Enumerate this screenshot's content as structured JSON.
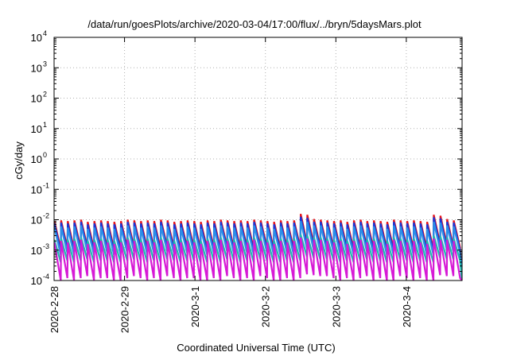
{
  "chart_data": {
    "type": "line",
    "title": "/data/run/goesPlots/archive/2020-03-04/17:00/flux/../bryn/5daysMars.plot",
    "xlabel": "Coordinated Universal Time (UTC)",
    "ylabel": "cGy/day",
    "yscale": "log",
    "ylim": [
      0.0001,
      10000
    ],
    "xlim": [
      "2020-02-28T00:00",
      "2020-03-04T19:00"
    ],
    "grid": true,
    "x_ticks": [
      {
        "label": "2020-2-28",
        "x": "2020-02-28T00:00"
      },
      {
        "label": "2020-2-29",
        "x": "2020-02-29T00:00"
      },
      {
        "label": "2020-3-1",
        "x": "2020-03-01T00:00"
      },
      {
        "label": "2020-3-2",
        "x": "2020-03-02T00:00"
      },
      {
        "label": "2020-3-3",
        "x": "2020-03-03T00:00"
      },
      {
        "label": "2020-3-4",
        "x": "2020-03-04T00:00"
      }
    ],
    "y_ticks": [
      {
        "base": "10",
        "exp": "-4",
        "value": 0.0001
      },
      {
        "base": "10",
        "exp": "-3",
        "value": 0.001
      },
      {
        "base": "10",
        "exp": "-2",
        "value": 0.01
      },
      {
        "base": "10",
        "exp": "-1",
        "value": 0.1
      },
      {
        "base": "10",
        "exp": "0",
        "value": 1
      },
      {
        "base": "10",
        "exp": "1",
        "value": 10
      },
      {
        "base": "10",
        "exp": "2",
        "value": 100
      },
      {
        "base": "10",
        "exp": "3",
        "value": 1000
      },
      {
        "base": "10",
        "exp": "4",
        "value": 10000
      }
    ],
    "series": [
      {
        "color": "#e4141c",
        "peaks": [
          0.009,
          0.0095,
          0.009,
          0.0095,
          0.01,
          0.0085,
          0.009,
          0.0095,
          0.009,
          0.0085,
          0.009,
          0.01,
          0.0095,
          0.009,
          0.0095,
          0.009,
          0.01,
          0.0095,
          0.0085,
          0.009,
          0.0095,
          0.009,
          0.0085,
          0.0095,
          0.009,
          0.01,
          0.0095,
          0.009,
          0.0095,
          0.009,
          0.01,
          0.0095,
          0.009,
          0.0085,
          0.0095,
          0.009,
          0.0095,
          0.0155,
          0.0145,
          0.0105,
          0.01,
          0.0095,
          0.009,
          0.0095,
          0.0085,
          0.0095,
          0.01,
          0.009,
          0.0095,
          0.009,
          0.0085,
          0.01,
          0.0095,
          0.009,
          0.0095,
          0.009,
          0.0085,
          0.0145,
          0.0135,
          0.0105,
          0.0095
        ],
        "troughs": [
          0.0011,
          0.0012,
          0.0011,
          0.0012,
          0.0013,
          0.0011,
          0.0012,
          0.0012,
          0.0011,
          0.0011,
          0.0012,
          0.0013,
          0.0012,
          0.0011,
          0.0012,
          0.0011,
          0.0013,
          0.0012,
          0.0011,
          0.0012,
          0.0012,
          0.0011,
          0.0011,
          0.0012,
          0.0011,
          0.0013,
          0.0012,
          0.0011,
          0.0012,
          0.0011,
          0.0013,
          0.0012,
          0.0011,
          0.0011,
          0.0012,
          0.0011,
          0.0012,
          0.0017,
          0.0016,
          0.0013,
          0.0013,
          0.0012,
          0.0011,
          0.0012,
          0.0011,
          0.0012,
          0.0013,
          0.0011,
          0.0012,
          0.0011,
          0.0011,
          0.0013,
          0.0012,
          0.0011,
          0.0012,
          0.0011,
          0.0011,
          0.0016,
          0.0015,
          0.0013,
          0.0012
        ],
        "end": 0.0001
      },
      {
        "color": "#1a35d6",
        "peaks": [
          0.0075,
          0.008,
          0.0075,
          0.008,
          0.0085,
          0.007,
          0.0075,
          0.008,
          0.0075,
          0.007,
          0.0075,
          0.0085,
          0.008,
          0.0075,
          0.008,
          0.0075,
          0.0085,
          0.008,
          0.007,
          0.0075,
          0.008,
          0.0075,
          0.007,
          0.008,
          0.0075,
          0.0085,
          0.008,
          0.0075,
          0.008,
          0.0075,
          0.0085,
          0.008,
          0.0075,
          0.007,
          0.008,
          0.0075,
          0.008,
          0.0125,
          0.0115,
          0.0085,
          0.0085,
          0.008,
          0.0075,
          0.008,
          0.007,
          0.008,
          0.0085,
          0.0075,
          0.008,
          0.0075,
          0.007,
          0.0085,
          0.008,
          0.0075,
          0.008,
          0.0075,
          0.007,
          0.012,
          0.011,
          0.0085,
          0.008
        ],
        "troughs": [
          0.0009,
          0.001,
          0.0009,
          0.001,
          0.0011,
          0.0009,
          0.001,
          0.001,
          0.0009,
          0.0009,
          0.001,
          0.0011,
          0.001,
          0.0009,
          0.001,
          0.0009,
          0.0011,
          0.001,
          0.0009,
          0.001,
          0.001,
          0.0009,
          0.0009,
          0.001,
          0.0009,
          0.0011,
          0.001,
          0.0009,
          0.001,
          0.0009,
          0.0011,
          0.001,
          0.0009,
          0.0009,
          0.001,
          0.0009,
          0.001,
          0.0014,
          0.0013,
          0.0011,
          0.0011,
          0.001,
          0.0009,
          0.001,
          0.0009,
          0.001,
          0.0011,
          0.0009,
          0.001,
          0.0009,
          0.0009,
          0.0011,
          0.001,
          0.0009,
          0.001,
          0.0009,
          0.0009,
          0.0013,
          0.0012,
          0.0011,
          0.001
        ],
        "end": 0.0001
      },
      {
        "color": "#2a8fe8",
        "peaks": [
          0.0055,
          0.006,
          0.0055,
          0.006,
          0.0065,
          0.005,
          0.0055,
          0.006,
          0.0055,
          0.005,
          0.0055,
          0.0065,
          0.006,
          0.0055,
          0.006,
          0.0055,
          0.0065,
          0.006,
          0.005,
          0.0055,
          0.006,
          0.0055,
          0.005,
          0.006,
          0.0055,
          0.0065,
          0.006,
          0.0055,
          0.006,
          0.0055,
          0.0065,
          0.006,
          0.0055,
          0.005,
          0.006,
          0.0055,
          0.006,
          0.009,
          0.0085,
          0.0065,
          0.0065,
          0.006,
          0.0055,
          0.006,
          0.005,
          0.006,
          0.0065,
          0.0055,
          0.006,
          0.0055,
          0.005,
          0.0065,
          0.006,
          0.0055,
          0.006,
          0.0055,
          0.005,
          0.0085,
          0.008,
          0.0065,
          0.006
        ],
        "troughs": [
          0.0007,
          0.0008,
          0.0007,
          0.0008,
          0.0009,
          0.0007,
          0.0008,
          0.0008,
          0.0007,
          0.0007,
          0.0008,
          0.0009,
          0.0008,
          0.0007,
          0.0008,
          0.0007,
          0.0009,
          0.0008,
          0.0007,
          0.0008,
          0.0008,
          0.0007,
          0.0007,
          0.0008,
          0.0007,
          0.0009,
          0.0008,
          0.0007,
          0.0008,
          0.0007,
          0.0009,
          0.0008,
          0.0007,
          0.0007,
          0.0008,
          0.0007,
          0.0008,
          0.0011,
          0.001,
          0.0009,
          0.0009,
          0.0008,
          0.0007,
          0.0008,
          0.0007,
          0.0008,
          0.0009,
          0.0007,
          0.0008,
          0.0007,
          0.0007,
          0.0009,
          0.0008,
          0.0007,
          0.0008,
          0.0007,
          0.0007,
          0.001,
          0.001,
          0.0009,
          0.0008
        ],
        "end": 0.0001
      },
      {
        "color": "#20b8b0",
        "peaks": [
          0.0022,
          0.0024,
          0.0022,
          0.0024,
          0.0026,
          0.002,
          0.0022,
          0.0024,
          0.0022,
          0.002,
          0.0022,
          0.0026,
          0.0024,
          0.0022,
          0.0024,
          0.0022,
          0.0026,
          0.0024,
          0.002,
          0.0022,
          0.0024,
          0.0022,
          0.002,
          0.0024,
          0.0022,
          0.0026,
          0.0024,
          0.0022,
          0.0024,
          0.0022,
          0.0026,
          0.0024,
          0.0022,
          0.002,
          0.0024,
          0.0022,
          0.0024,
          0.0032,
          0.003,
          0.0026,
          0.0026,
          0.0024,
          0.0022,
          0.0024,
          0.002,
          0.0024,
          0.0026,
          0.0022,
          0.0024,
          0.0022,
          0.002,
          0.0026,
          0.0024,
          0.0022,
          0.0024,
          0.0022,
          0.002,
          0.003,
          0.0028,
          0.0026,
          0.0024
        ],
        "troughs": [
          0.0004,
          0.00045,
          0.0004,
          0.00045,
          0.0005,
          0.0004,
          0.00045,
          0.00045,
          0.0004,
          0.0004,
          0.00045,
          0.0005,
          0.00045,
          0.0004,
          0.00045,
          0.0004,
          0.0005,
          0.00045,
          0.0004,
          0.00045,
          0.00045,
          0.0004,
          0.0004,
          0.00045,
          0.0004,
          0.0005,
          0.00045,
          0.0004,
          0.00045,
          0.0004,
          0.0005,
          0.00045,
          0.0004,
          0.0004,
          0.00045,
          0.0004,
          0.00045,
          0.0006,
          0.00055,
          0.0005,
          0.0005,
          0.00045,
          0.0004,
          0.00045,
          0.0004,
          0.00045,
          0.0005,
          0.0004,
          0.00045,
          0.0004,
          0.0004,
          0.0005,
          0.00045,
          0.0004,
          0.00045,
          0.0004,
          0.0004,
          0.00055,
          0.0005,
          0.0005,
          0.00045
        ],
        "end": 0.0001
      },
      {
        "color": "#d61ad6",
        "peaks": [
          0.0018,
          0.002,
          0.0018,
          0.002,
          0.0022,
          0.0016,
          0.0018,
          0.002,
          0.0018,
          0.0016,
          0.0018,
          0.0022,
          0.002,
          0.0018,
          0.002,
          0.0018,
          0.0022,
          0.002,
          0.0016,
          0.0018,
          0.002,
          0.0018,
          0.0016,
          0.002,
          0.0018,
          0.0022,
          0.002,
          0.0018,
          0.002,
          0.0018,
          0.0022,
          0.002,
          0.0018,
          0.0016,
          0.002,
          0.0018,
          0.002,
          0.0026,
          0.0024,
          0.0022,
          0.0022,
          0.002,
          0.0018,
          0.002,
          0.0016,
          0.002,
          0.0022,
          0.0018,
          0.002,
          0.0018,
          0.0016,
          0.0022,
          0.002,
          0.0018,
          0.002,
          0.0018,
          0.0016,
          0.0024,
          0.0022,
          0.0022,
          0.002
        ],
        "troughs": [
          0.0001,
          0.00012,
          0.0001,
          0.00012,
          0.00014,
          0.0001,
          0.00012,
          0.00012,
          0.0001,
          0.0001,
          0.00012,
          0.00014,
          0.00012,
          0.0001,
          0.00012,
          0.0001,
          0.00014,
          0.00012,
          0.0001,
          0.00012,
          0.00012,
          0.0001,
          0.0001,
          0.00012,
          0.0001,
          0.00014,
          0.00012,
          0.0001,
          0.00012,
          0.0001,
          0.00014,
          0.00012,
          0.0001,
          0.0001,
          0.00012,
          0.0001,
          0.00012,
          0.00016,
          0.00015,
          0.00014,
          0.00014,
          0.00012,
          0.0001,
          0.00012,
          0.0001,
          0.00012,
          0.00014,
          0.0001,
          0.00012,
          0.0001,
          0.0001,
          0.00014,
          0.00012,
          0.0001,
          0.00012,
          0.0001,
          0.0001,
          0.00015,
          0.00014,
          0.00014,
          0.00012
        ],
        "end": 0.0001
      }
    ]
  }
}
